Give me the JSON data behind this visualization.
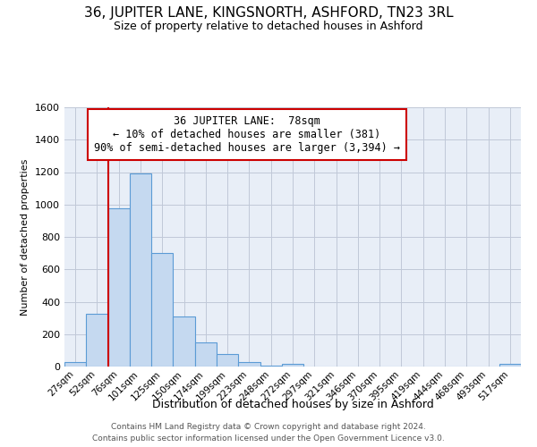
{
  "title": "36, JUPITER LANE, KINGSNORTH, ASHFORD, TN23 3RL",
  "subtitle": "Size of property relative to detached houses in Ashford",
  "xlabel": "Distribution of detached houses by size in Ashford",
  "ylabel": "Number of detached properties",
  "bar_labels": [
    "27sqm",
    "52sqm",
    "76sqm",
    "101sqm",
    "125sqm",
    "150sqm",
    "174sqm",
    "199sqm",
    "223sqm",
    "248sqm",
    "272sqm",
    "297sqm",
    "321sqm",
    "346sqm",
    "370sqm",
    "395sqm",
    "419sqm",
    "444sqm",
    "468sqm",
    "493sqm",
    "517sqm"
  ],
  "bar_values": [
    30,
    325,
    975,
    1190,
    700,
    310,
    150,
    75,
    30,
    5,
    15,
    0,
    0,
    0,
    0,
    0,
    0,
    0,
    0,
    0,
    15
  ],
  "bar_color": "#c5d9f0",
  "bar_edge_color": "#5b9bd5",
  "ylim": [
    0,
    1600
  ],
  "yticks": [
    0,
    200,
    400,
    600,
    800,
    1000,
    1200,
    1400,
    1600
  ],
  "property_line_x": 2.0,
  "property_line_color": "#cc0000",
  "annotation_title": "36 JUPITER LANE:  78sqm",
  "annotation_line1": "← 10% of detached houses are smaller (381)",
  "annotation_line2": "90% of semi-detached houses are larger (3,394) →",
  "annotation_box_color": "#ffffff",
  "annotation_box_edge": "#cc0000",
  "footer1": "Contains HM Land Registry data © Crown copyright and database right 2024.",
  "footer2": "Contains public sector information licensed under the Open Government Licence v3.0.",
  "background_color": "#ffffff",
  "plot_bg_color": "#e8eef7",
  "grid_color": "#c0c8d8",
  "title_fontsize": 11,
  "subtitle_fontsize": 9
}
